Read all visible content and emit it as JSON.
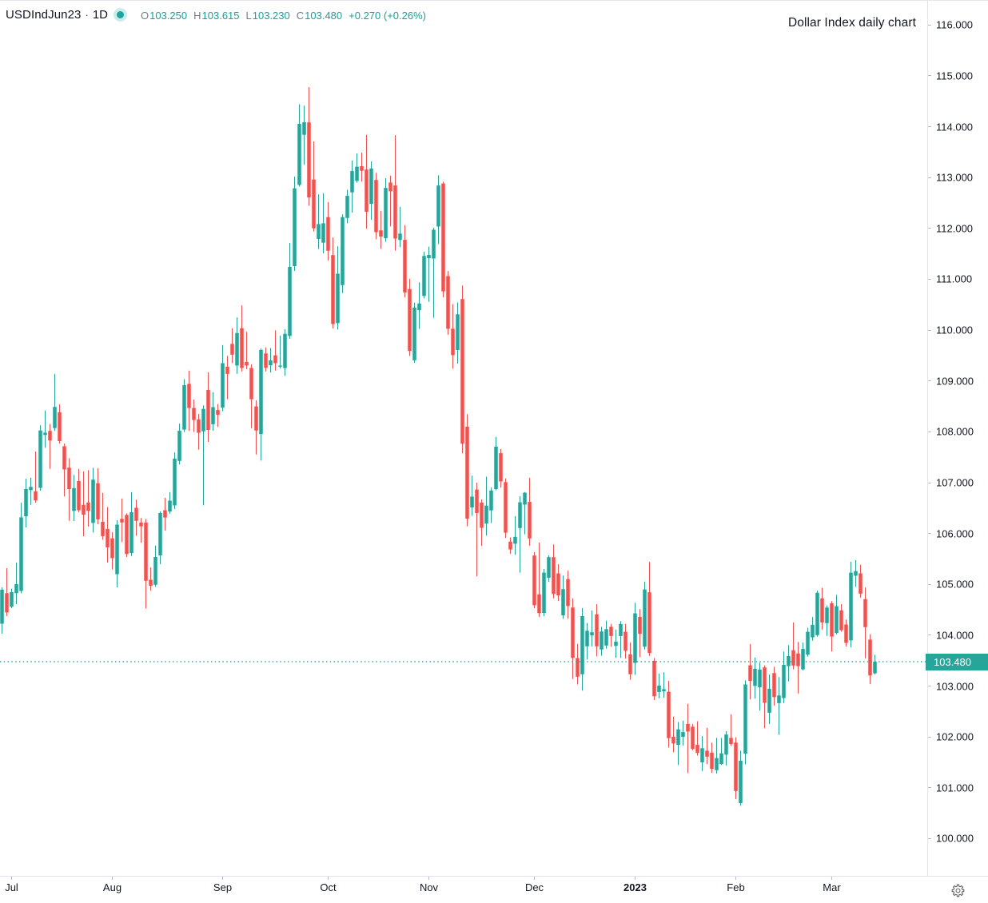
{
  "header": {
    "symbol": "USDIndJun23",
    "separator": "·",
    "timeframe": "1D",
    "status_icon": "market-open-dot",
    "ohlc": {
      "open_label": "O",
      "open": "103.250",
      "high_label": "H",
      "high": "103.615",
      "low_label": "L",
      "low": "103.230",
      "close_label": "C",
      "close": "103.480",
      "change": "+0.270 (+0.26%)"
    }
  },
  "title": "Dollar Index daily chart",
  "price_axis": {
    "ticks": [
      "116.000",
      "115.000",
      "114.000",
      "113.000",
      "112.000",
      "111.000",
      "110.000",
      "109.000",
      "108.000",
      "107.000",
      "106.000",
      "105.000",
      "104.000",
      "103.000",
      "102.000",
      "101.000",
      "100.000"
    ],
    "last_price_label": "103.480"
  },
  "time_axis": {
    "ticks": [
      {
        "label": "Jul",
        "candle_index": 2,
        "bold": false
      },
      {
        "label": "Aug",
        "candle_index": 23,
        "bold": false
      },
      {
        "label": "Sep",
        "candle_index": 46,
        "bold": false
      },
      {
        "label": "Oct",
        "candle_index": 68,
        "bold": false
      },
      {
        "label": "Nov",
        "candle_index": 89,
        "bold": false
      },
      {
        "label": "Dec",
        "candle_index": 111,
        "bold": false
      },
      {
        "label": "2023",
        "candle_index": 132,
        "bold": true
      },
      {
        "label": "Feb",
        "candle_index": 153,
        "bold": false
      },
      {
        "label": "Mar",
        "candle_index": 173,
        "bold": false
      }
    ]
  },
  "toolbar": {
    "settings_icon": "gear-icon"
  },
  "colors": {
    "up": "#26a69a",
    "down": "#ef5350",
    "text": "#131722",
    "muted_text": "#787b86",
    "axis_line": "#e0e3eb",
    "price_line": "#26a69a",
    "price_label_bg": "#26a69a",
    "price_label_text": "#ffffff",
    "background": "#ffffff"
  },
  "chart_data": {
    "type": "candlestick",
    "title": "Dollar Index daily chart",
    "symbol": "USDIndJun23",
    "timeframe": "1D",
    "xlabel": "",
    "ylabel": "",
    "ylim": [
      99.45,
      116.48
    ],
    "y_tick_step": 1.0,
    "grid": false,
    "x_range_labels": [
      "Jul",
      "Aug",
      "Sep",
      "Oct",
      "Nov",
      "Dec",
      "2023",
      "Feb",
      "Mar"
    ],
    "last_close": 103.48,
    "price_line_value": 103.48,
    "legend_ohlc": {
      "open": 103.25,
      "high": 103.615,
      "low": 103.23,
      "close": 103.48,
      "change": 0.27,
      "change_pct": 0.26
    },
    "candles_format": [
      "open",
      "high",
      "low",
      "close"
    ],
    "candles": [
      [
        104.227,
        104.942,
        104.03,
        104.895
      ],
      [
        104.827,
        105.319,
        104.376,
        104.448
      ],
      [
        104.56,
        104.917,
        104.533,
        104.849
      ],
      [
        104.827,
        105.429,
        104.612,
        105.005
      ],
      [
        104.871,
        106.608,
        104.827,
        106.318
      ],
      [
        106.34,
        107.079,
        106.12,
        106.875
      ],
      [
        106.853,
        107.098,
        106.564,
        106.919
      ],
      [
        106.831,
        107.613,
        106.608,
        106.652
      ],
      [
        106.898,
        108.127,
        106.843,
        108.028
      ],
      [
        107.939,
        108.418,
        107.686,
        107.983
      ],
      [
        108.019,
        108.155,
        107.272,
        107.83
      ],
      [
        108.074,
        109.141,
        108.019,
        108.49
      ],
      [
        108.385,
        108.54,
        107.77,
        107.818
      ],
      [
        107.717,
        107.77,
        106.729,
        107.26
      ],
      [
        107.296,
        107.481,
        106.252,
        106.875
      ],
      [
        106.444,
        107.154,
        106.246,
        106.894
      ],
      [
        107.032,
        107.272,
        106.419,
        106.458
      ],
      [
        106.564,
        107.225,
        105.948,
        106.373
      ],
      [
        106.611,
        107.249,
        106.136,
        106.444
      ],
      [
        106.208,
        107.293,
        106.018,
        107.06
      ],
      [
        106.989,
        107.283,
        106.183,
        106.278
      ],
      [
        106.23,
        106.799,
        105.877,
        105.948
      ],
      [
        106.089,
        106.523,
        105.429,
        105.728
      ],
      [
        105.907,
        106.026,
        105.292,
        105.515
      ],
      [
        105.201,
        106.262,
        104.942,
        106.175
      ],
      [
        106.289,
        106.688,
        105.831,
        106.219
      ],
      [
        106.366,
        106.395,
        105.539,
        105.597
      ],
      [
        105.616,
        106.813,
        105.558,
        106.421
      ],
      [
        106.507,
        106.667,
        105.957,
        106.249
      ],
      [
        106.215,
        106.307,
        105.82,
        106.142
      ],
      [
        106.215,
        106.289,
        104.525,
        105.071
      ],
      [
        105.091,
        105.333,
        104.876,
        104.973
      ],
      [
        104.994,
        105.762,
        104.954,
        105.539
      ],
      [
        105.57,
        106.435,
        105.398,
        106.405
      ],
      [
        106.458,
        106.702,
        106.058,
        106.315
      ],
      [
        106.435,
        106.813,
        106.388,
        106.647
      ],
      [
        106.553,
        107.594,
        106.482,
        107.475
      ],
      [
        107.428,
        108.162,
        107.357,
        108.02
      ],
      [
        108.044,
        109.037,
        107.997,
        108.919
      ],
      [
        108.943,
        109.204,
        108.02,
        108.47
      ],
      [
        108.47,
        108.635,
        107.997,
        108.232
      ],
      [
        108.245,
        108.352,
        107.649,
        107.981
      ],
      [
        108.009,
        108.522,
        106.554,
        108.452
      ],
      [
        108.823,
        109.169,
        107.802,
        108.038
      ],
      [
        108.148,
        108.781,
        108.022,
        108.485
      ],
      [
        108.429,
        108.547,
        108.097,
        108.335
      ],
      [
        108.476,
        109.706,
        108.405,
        109.351
      ],
      [
        109.281,
        109.494,
        108.641,
        109.139
      ],
      [
        109.73,
        110.038,
        109.351,
        109.518
      ],
      [
        109.304,
        110.252,
        109.139,
        109.944
      ],
      [
        110.038,
        110.487,
        109.186,
        109.257
      ],
      [
        109.375,
        109.967,
        109.233,
        109.304
      ],
      [
        109.257,
        109.328,
        108.074,
        108.641
      ],
      [
        108.5,
        108.619,
        107.554,
        108.027
      ],
      [
        107.956,
        109.636,
        107.434,
        109.612
      ],
      [
        109.541,
        109.659,
        109.186,
        109.257
      ],
      [
        109.31,
        109.648,
        109.169,
        109.405
      ],
      [
        109.504,
        109.997,
        109.205,
        109.35
      ],
      [
        109.281,
        109.893,
        109.246,
        109.303
      ],
      [
        109.254,
        110.018,
        109.1,
        109.928
      ],
      [
        109.886,
        111.715,
        109.829,
        111.243
      ],
      [
        111.259,
        113.019,
        111.165,
        112.79
      ],
      [
        112.856,
        114.441,
        112.823,
        114.056
      ],
      [
        113.841,
        114.414,
        113.25,
        114.086
      ],
      [
        114.084,
        114.779,
        112.445,
        112.61
      ],
      [
        112.961,
        113.71,
        111.939,
        112.002
      ],
      [
        111.793,
        112.669,
        111.595,
        112.086
      ],
      [
        111.719,
        112.692,
        111.51,
        112.101
      ],
      [
        112.222,
        112.518,
        111.371,
        111.562
      ],
      [
        111.476,
        111.823,
        110.032,
        110.12
      ],
      [
        110.137,
        111.649,
        110.014,
        111.11
      ],
      [
        110.885,
        112.276,
        110.728,
        112.222
      ],
      [
        112.205,
        112.761,
        112.101,
        112.64
      ],
      [
        112.709,
        113.335,
        112.31,
        113.127
      ],
      [
        112.936,
        113.475,
        112.901,
        113.214
      ],
      [
        113.223,
        113.49,
        112.918,
        113.134
      ],
      [
        113.157,
        113.841,
        111.998,
        112.328
      ],
      [
        112.483,
        113.318,
        112.17,
        113.179
      ],
      [
        112.953,
        113.091,
        111.789,
        111.927
      ],
      [
        111.961,
        112.345,
        111.597,
        111.84
      ],
      [
        111.806,
        112.988,
        111.738,
        112.796
      ],
      [
        112.903,
        113.039,
        112.042,
        112.73
      ],
      [
        112.845,
        113.835,
        111.564,
        111.8
      ],
      [
        111.773,
        112.427,
        111.633,
        111.899
      ],
      [
        111.776,
        112.065,
        110.641,
        110.742
      ],
      [
        110.808,
        111.009,
        109.491,
        109.59
      ],
      [
        109.408,
        110.541,
        109.358,
        110.442
      ],
      [
        110.392,
        110.942,
        110.024,
        110.525
      ],
      [
        110.674,
        111.542,
        110.624,
        111.459
      ],
      [
        111.416,
        111.642,
        110.558,
        111.479
      ],
      [
        111.408,
        112.013,
        110.241,
        111.974
      ],
      [
        112.037,
        113.044,
        111.693,
        112.845
      ],
      [
        112.884,
        112.917,
        110.645,
        110.762
      ],
      [
        111.063,
        111.163,
        109.909,
        110.027
      ],
      [
        110.027,
        110.511,
        109.241,
        109.508
      ],
      [
        109.609,
        110.546,
        109.342,
        110.311
      ],
      [
        110.612,
        110.879,
        107.579,
        107.77
      ],
      [
        108.1,
        108.349,
        106.142,
        106.293
      ],
      [
        106.513,
        107.137,
        106.347,
        106.727
      ],
      [
        106.864,
        107.0,
        105.159,
        106.405
      ],
      [
        106.609,
        106.669,
        105.757,
        106.113
      ],
      [
        106.194,
        107.118,
        105.959,
        106.549
      ],
      [
        106.455,
        106.905,
        106.207,
        106.846
      ],
      [
        106.875,
        107.899,
        106.851,
        107.709
      ],
      [
        107.58,
        107.662,
        106.905,
        107.024
      ],
      [
        107.011,
        107.082,
        105.911,
        106.017
      ],
      [
        105.841,
        105.924,
        105.603,
        105.687
      ],
      [
        105.8,
        106.342,
        105.583,
        105.935
      ],
      [
        106.108,
        106.733,
        105.231,
        106.614
      ],
      [
        106.568,
        106.817,
        105.984,
        106.804
      ],
      [
        106.622,
        107.095,
        105.759,
        105.904
      ],
      [
        105.567,
        105.633,
        104.533,
        104.59
      ],
      [
        104.804,
        105.822,
        104.359,
        104.437
      ],
      [
        104.437,
        105.303,
        104.376,
        105.231
      ],
      [
        105.13,
        105.57,
        105.047,
        105.536
      ],
      [
        105.536,
        105.786,
        104.727,
        104.811
      ],
      [
        105.215,
        105.396,
        104.672,
        104.783
      ],
      [
        104.392,
        105.173,
        104.323,
        104.907
      ],
      [
        105.104,
        105.27,
        104.329,
        104.574
      ],
      [
        104.546,
        104.727,
        103.139,
        103.553
      ],
      [
        103.553,
        103.829,
        103.032,
        103.185
      ],
      [
        103.232,
        104.533,
        102.91,
        104.376
      ],
      [
        103.782,
        104.243,
        103.523,
        104.089
      ],
      [
        103.997,
        104.488,
        103.782,
        104.059
      ],
      [
        104.411,
        104.612,
        103.584,
        103.782
      ],
      [
        103.721,
        104.166,
        103.598,
        104.074
      ],
      [
        103.798,
        104.288,
        103.737,
        104.12
      ],
      [
        104.166,
        104.222,
        103.777,
        103.985
      ],
      [
        103.79,
        104.111,
        103.554,
        103.875
      ],
      [
        103.985,
        104.277,
        103.554,
        104.222
      ],
      [
        104.068,
        104.222,
        103.54,
        103.694
      ],
      [
        103.623,
        103.861,
        103.124,
        103.234
      ],
      [
        103.457,
        104.639,
        103.221,
        104.431
      ],
      [
        104.36,
        104.514,
        103.568,
        104.027
      ],
      [
        103.774,
        105.053,
        103.719,
        104.901
      ],
      [
        104.844,
        105.443,
        103.594,
        103.649
      ],
      [
        103.496,
        103.551,
        102.726,
        102.8
      ],
      [
        102.885,
        103.245,
        102.759,
        103.009
      ],
      [
        102.899,
        103.273,
        102.773,
        102.94
      ],
      [
        102.889,
        103.102,
        101.791,
        101.976
      ],
      [
        102.003,
        102.399,
        101.698,
        101.871
      ],
      [
        101.844,
        102.294,
        101.447,
        102.149
      ],
      [
        102.003,
        102.321,
        101.832,
        102.096
      ],
      [
        102.255,
        102.651,
        101.288,
        102.108
      ],
      [
        102.201,
        102.255,
        101.738,
        101.764
      ],
      [
        101.844,
        102.308,
        101.632,
        101.686
      ],
      [
        101.5,
        102.016,
        101.329,
        101.778
      ],
      [
        101.73,
        102.179,
        101.466,
        101.612
      ],
      [
        101.69,
        101.888,
        101.293,
        101.373
      ],
      [
        101.346,
        101.981,
        101.28,
        101.585
      ],
      [
        101.466,
        101.981,
        101.452,
        101.678
      ],
      [
        101.651,
        102.113,
        101.439,
        102.047
      ],
      [
        101.981,
        102.445,
        101.822,
        101.862
      ],
      [
        101.888,
        101.995,
        100.777,
        100.936
      ],
      [
        100.699,
        101.73,
        100.645,
        101.532
      ],
      [
        101.67,
        103.116,
        101.461,
        103.032
      ],
      [
        103.408,
        103.826,
        102.74,
        103.102
      ],
      [
        103.004,
        103.561,
        102.754,
        103.339
      ],
      [
        102.977,
        103.463,
        102.519,
        103.325
      ],
      [
        103.367,
        103.408,
        102.171,
        102.671
      ],
      [
        102.476,
        103.227,
        102.255,
        102.949
      ],
      [
        103.256,
        103.38,
        102.616,
        102.783
      ],
      [
        102.665,
        103.179,
        102.042,
        102.816
      ],
      [
        102.765,
        103.68,
        102.665,
        103.417
      ],
      [
        103.392,
        103.806,
        103.091,
        103.592
      ],
      [
        103.705,
        104.252,
        103.329,
        103.405
      ],
      [
        103.642,
        103.869,
        102.853,
        103.392
      ],
      [
        103.329,
        103.856,
        103.307,
        103.73
      ],
      [
        103.617,
        104.144,
        103.579,
        104.068
      ],
      [
        103.957,
        104.359,
        103.894,
        104.206
      ],
      [
        104.002,
        104.879,
        103.974,
        104.837
      ],
      [
        104.725,
        104.934,
        104.114,
        104.252
      ],
      [
        104.238,
        104.587,
        103.988,
        104.544
      ],
      [
        104.628,
        104.67,
        103.682,
        103.974
      ],
      [
        104.043,
        104.794,
        104.016,
        104.573
      ],
      [
        104.489,
        104.613,
        104.071,
        104.1
      ],
      [
        104.211,
        104.309,
        103.779,
        103.85
      ],
      [
        103.898,
        105.446,
        103.762,
        105.231
      ],
      [
        105.17,
        105.476,
        104.956,
        105.262
      ],
      [
        105.217,
        105.385,
        104.742,
        104.818
      ],
      [
        104.711,
        104.94,
        103.546,
        104.159
      ],
      [
        103.914,
        104.021,
        103.04,
        103.21
      ],
      [
        103.25,
        103.615,
        103.23,
        103.48
      ]
    ]
  }
}
